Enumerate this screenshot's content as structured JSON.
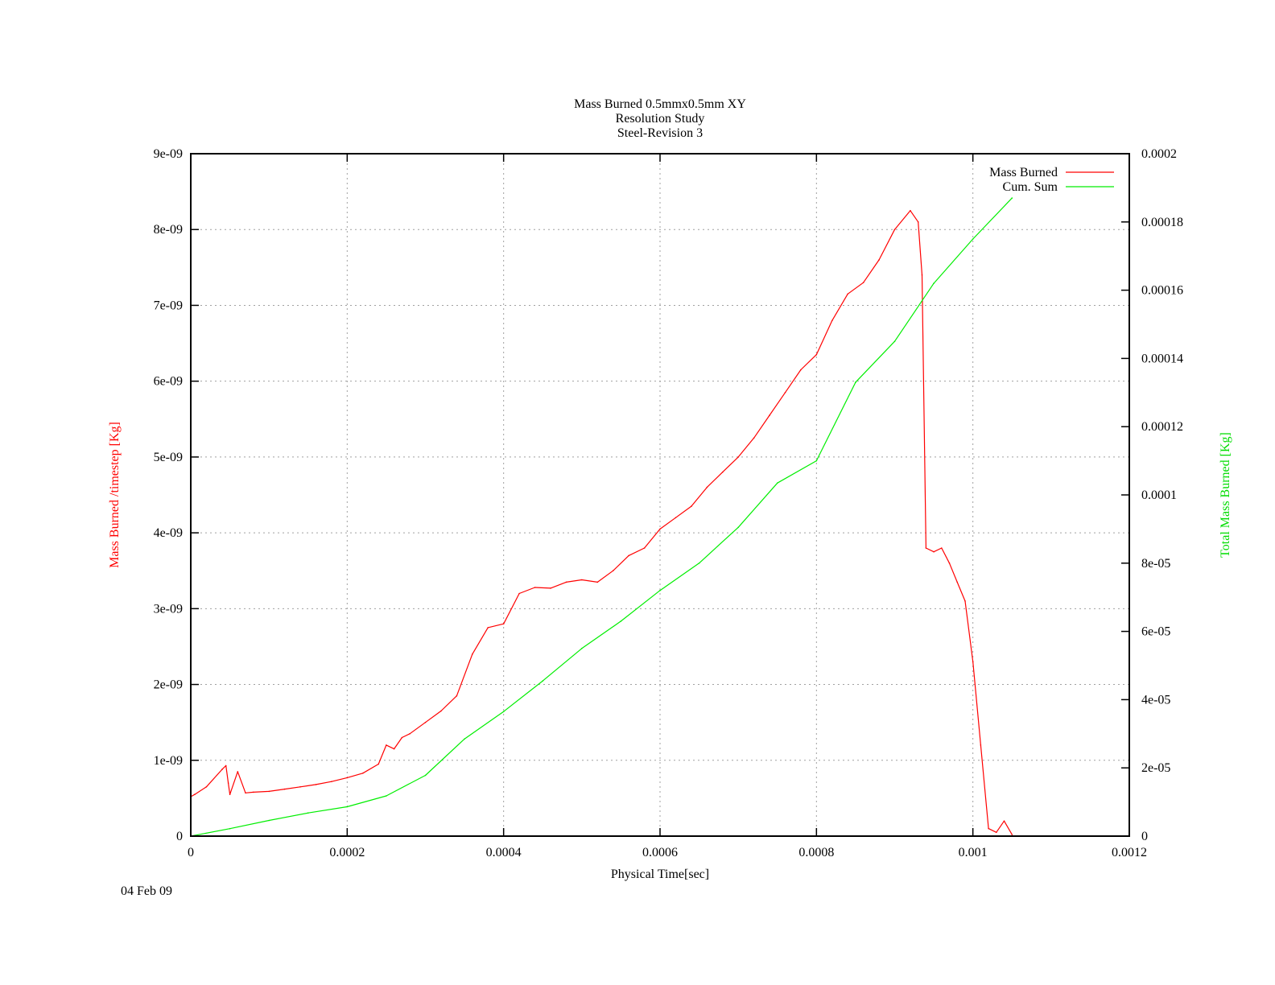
{
  "chart_data": {
    "type": "line",
    "title": [
      "Mass Burned 0.5mmx0.5mm XY",
      "Resolution Study",
      "Steel-Revision 3"
    ],
    "xlabel": "Physical Time[sec]",
    "ylabel": "Mass Burned /timestep  [Kg]",
    "y2label": "Total Mass Burned [Kg]",
    "xlim": [
      0,
      0.0012
    ],
    "ylim": [
      0,
      9e-09
    ],
    "y2lim": [
      0,
      0.0002
    ],
    "xticks": [
      "0",
      "0.0002",
      "0.0004",
      "0.0006",
      "0.0008",
      "0.001",
      "0.0012"
    ],
    "xtick_values": [
      0,
      0.0002,
      0.0004,
      0.0006,
      0.0008,
      0.001,
      0.0012
    ],
    "yticks": [
      "0",
      "1e-09",
      "2e-09",
      "3e-09",
      "4e-09",
      "5e-09",
      "6e-09",
      "7e-09",
      "8e-09",
      "9e-09"
    ],
    "ytick_values": [
      0,
      1e-09,
      2e-09,
      3e-09,
      4e-09,
      5e-09,
      6e-09,
      7e-09,
      8e-09,
      9e-09
    ],
    "y2ticks": [
      "0",
      "2e-05",
      "4e-05",
      "6e-05",
      "8e-05",
      "0.0001",
      "0.00012",
      "0.00014",
      "0.00016",
      "0.00018",
      "0.0002"
    ],
    "y2tick_values": [
      0,
      2e-05,
      4e-05,
      6e-05,
      8e-05,
      0.0001,
      0.00012,
      0.00014,
      0.00016,
      0.00018,
      0.0002
    ],
    "grid": true,
    "legend_position": "top-right",
    "series": [
      {
        "name": "Mass Burned",
        "axis": "y",
        "color": "#ff0000",
        "x": [
          0,
          5e-06,
          2e-05,
          4e-05,
          4.5e-05,
          4.8e-05,
          5e-05,
          6e-05,
          7e-05,
          8e-05,
          0.0001,
          0.00012,
          0.00014,
          0.00016,
          0.00018,
          0.0002,
          0.00022,
          0.00024,
          0.00025,
          0.00026,
          0.00027,
          0.00028,
          0.0003,
          0.00032,
          0.00034,
          0.00036,
          0.00038,
          0.0004,
          0.00042,
          0.00044,
          0.00046,
          0.00048,
          0.0005,
          0.00052,
          0.00054,
          0.00056,
          0.00058,
          0.0006,
          0.00062,
          0.00064,
          0.00066,
          0.00068,
          0.0007,
          0.00072,
          0.00074,
          0.00076,
          0.00078,
          0.0008,
          0.00082,
          0.00084,
          0.00086,
          0.00088,
          0.0009,
          0.00092,
          0.00093,
          0.000935,
          0.00094,
          0.00095,
          0.00096,
          0.00097,
          0.00098,
          0.00099,
          0.001,
          0.00101,
          0.00102,
          0.00103,
          0.00104,
          0.00105
        ],
        "values": [
          5.2e-10,
          5.5e-10,
          6.5e-10,
          8.8e-10,
          9.3e-10,
          7e-10,
          5.5e-10,
          8.5e-10,
          5.7e-10,
          5.8e-10,
          5.9e-10,
          6.2e-10,
          6.5e-10,
          6.8e-10,
          7.2e-10,
          7.7e-10,
          8.3e-10,
          9.5e-10,
          1.2e-09,
          1.15e-09,
          1.3e-09,
          1.35e-09,
          1.5e-09,
          1.65e-09,
          1.85e-09,
          2.4e-09,
          2.75e-09,
          2.8e-09,
          3.2e-09,
          3.28e-09,
          3.27e-09,
          3.35e-09,
          3.38e-09,
          3.35e-09,
          3.5e-09,
          3.7e-09,
          3.8e-09,
          4.05e-09,
          4.2e-09,
          4.35e-09,
          4.6e-09,
          4.8e-09,
          5e-09,
          5.25e-09,
          5.55e-09,
          5.85e-09,
          6.15e-09,
          6.35e-09,
          6.8e-09,
          7.15e-09,
          7.3e-09,
          7.6e-09,
          8e-09,
          8.25e-09,
          8.1e-09,
          7.4e-09,
          3.8e-09,
          3.75e-09,
          3.8e-09,
          3.6e-09,
          3.35e-09,
          3.1e-09,
          2.3e-09,
          1.2e-09,
          1e-10,
          5e-11,
          2e-10,
          2e-11
        ]
      },
      {
        "name": "Cum. Sum",
        "axis": "y2",
        "color": "#00ee00",
        "x": [
          0,
          5e-05,
          0.0001,
          0.00015,
          0.0002,
          0.00025,
          0.0003,
          0.00035,
          0.0004,
          0.00045,
          0.0005,
          0.00055,
          0.0006,
          0.00065,
          0.0007,
          0.00075,
          0.0008,
          0.00085,
          0.0009,
          0.00095,
          0.001,
          0.00105
        ],
        "values": [
          0,
          2.2e-06,
          4.6e-06,
          6.8e-06,
          8.6e-06,
          1.18e-05,
          1.78e-05,
          2.85e-05,
          3.65e-05,
          4.55e-05,
          5.5e-05,
          6.3e-05,
          7.2e-05,
          8e-05,
          9.05e-05,
          0.0001035,
          0.00011,
          0.000133,
          0.000145,
          0.000162,
          0.000175,
          0.000187
        ]
      }
    ]
  },
  "footer": {
    "date": "04 Feb 09"
  }
}
